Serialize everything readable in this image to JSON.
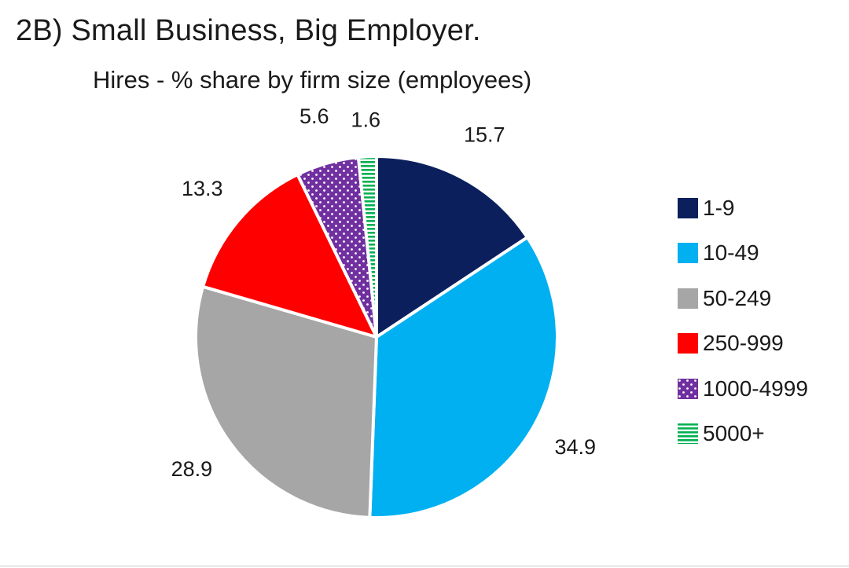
{
  "figure": {
    "title": "2B) Small Business, Big Employer."
  },
  "chart_data": {
    "type": "pie",
    "title": "Hires - % share by firm size (employees)",
    "legend_position": "right",
    "slices": [
      {
        "label": "1-9",
        "value": 15.7,
        "value_label": "15.7",
        "color": "#0a1f5c",
        "pattern": "solid"
      },
      {
        "label": "10-49",
        "value": 34.9,
        "value_label": "34.9",
        "color": "#00b0f0",
        "pattern": "solid"
      },
      {
        "label": "50-249",
        "value": 28.9,
        "value_label": "28.9",
        "color": "#a6a6a6",
        "pattern": "solid"
      },
      {
        "label": "250-999",
        "value": 13.3,
        "value_label": "13.3",
        "color": "#ff0000",
        "pattern": "solid"
      },
      {
        "label": "1000-4999",
        "value": 5.6,
        "value_label": "5.6",
        "color": "#7030a0",
        "pattern": "dots"
      },
      {
        "label": "5000+",
        "value": 1.6,
        "value_label": "1.6",
        "color": "#00b050",
        "pattern": "horizontal-stripes"
      }
    ]
  }
}
